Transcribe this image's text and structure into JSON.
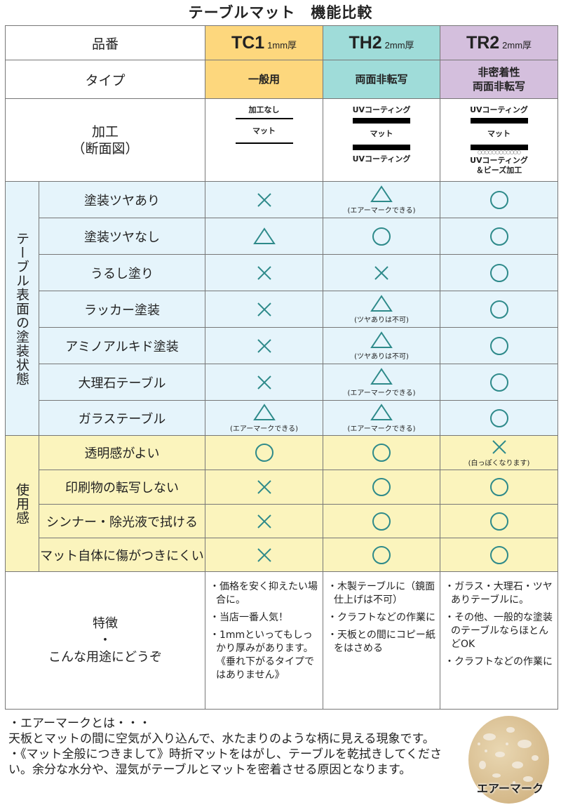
{
  "title": "テーブルマット　機能比較",
  "colors": {
    "tc1": "#fdd77d",
    "th2": "#9fdcd9",
    "tr2": "#d4bfdd",
    "surface_rows": "#e5f4fb",
    "usage_rows": "#fbf4bd",
    "symbol": "#2e8a8a"
  },
  "header": {
    "label": "品番",
    "products": [
      {
        "code": "TC1",
        "thickness": "1mm厚"
      },
      {
        "code": "TH2",
        "thickness": "2mm厚"
      },
      {
        "code": "TR2",
        "thickness": "2mm厚"
      }
    ]
  },
  "type_row": {
    "label": "タイプ",
    "values": [
      "一般用",
      "両面非転写",
      "非密着性\n両面非転写"
    ]
  },
  "process_row": {
    "label": "加工\n（断面図）",
    "tc1": {
      "top": "加工なし",
      "middle": "マット"
    },
    "th2": {
      "top": "UVコーティング",
      "middle": "マット",
      "bottom": "UVコーティング"
    },
    "tr2": {
      "top": "UVコーティング",
      "middle": "マット",
      "bottom": "UVコーティング\n＆ビーズ加工"
    }
  },
  "surface_group": {
    "label": "テーブル表面の塗装状態",
    "rows": [
      {
        "label": "塗装ツヤあり",
        "ratings": [
          {
            "symbol": "x"
          },
          {
            "symbol": "triangle",
            "note": "(エアーマークできる)"
          },
          {
            "symbol": "circle"
          }
        ]
      },
      {
        "label": "塗装ツヤなし",
        "ratings": [
          {
            "symbol": "triangle"
          },
          {
            "symbol": "circle"
          },
          {
            "symbol": "circle"
          }
        ]
      },
      {
        "label": "うるし塗り",
        "ratings": [
          {
            "symbol": "x"
          },
          {
            "symbol": "x"
          },
          {
            "symbol": "circle"
          }
        ]
      },
      {
        "label": "ラッカー塗装",
        "ratings": [
          {
            "symbol": "x"
          },
          {
            "symbol": "triangle",
            "note": "(ツヤありは不可)"
          },
          {
            "symbol": "circle"
          }
        ]
      },
      {
        "label": "アミノアルキド塗装",
        "ratings": [
          {
            "symbol": "x"
          },
          {
            "symbol": "triangle",
            "note": "(ツヤありは不可)"
          },
          {
            "symbol": "circle"
          }
        ]
      },
      {
        "label": "大理石テーブル",
        "ratings": [
          {
            "symbol": "x"
          },
          {
            "symbol": "triangle",
            "note": "(エアーマークできる)"
          },
          {
            "symbol": "circle"
          }
        ]
      },
      {
        "label": "ガラステーブル",
        "ratings": [
          {
            "symbol": "triangle",
            "note": "(エアーマークできる)"
          },
          {
            "symbol": "triangle",
            "note": "(エアーマークできる)"
          },
          {
            "symbol": "circle"
          }
        ]
      }
    ]
  },
  "usage_group": {
    "label": "使用感",
    "rows": [
      {
        "label": "透明感がよい",
        "ratings": [
          {
            "symbol": "circle"
          },
          {
            "symbol": "circle"
          },
          {
            "symbol": "x",
            "note": "(白っぽくなります)"
          }
        ]
      },
      {
        "label": "印刷物の転写しない",
        "ratings": [
          {
            "symbol": "x"
          },
          {
            "symbol": "circle"
          },
          {
            "symbol": "circle"
          }
        ]
      },
      {
        "label": "シンナー・除光液で拭ける",
        "ratings": [
          {
            "symbol": "x"
          },
          {
            "symbol": "circle"
          },
          {
            "symbol": "circle"
          }
        ]
      },
      {
        "label": "マット自体に傷がつきにくい",
        "ratings": [
          {
            "symbol": "x"
          },
          {
            "symbol": "circle"
          },
          {
            "symbol": "circle"
          }
        ]
      }
    ]
  },
  "features": {
    "label": "特徴\n・\nこんな用途にどうぞ",
    "values": [
      [
        "・価格を安く抑えたい場合に。",
        "・当店一番人気！",
        "・1mmといってもしっかり厚みがあります。《垂れ下がるタイプではありません》"
      ],
      [
        "・木製テーブルに（鏡面仕上げは不可）",
        "・クラフトなどの作業に",
        "・天板との間にコピー紙をはさめる"
      ],
      [
        "・ガラス・大理石・ツヤありテーブルに。",
        "・その他、一般的な塗装のテーブルならほとんどOK",
        "・クラフトなどの作業に"
      ]
    ]
  },
  "notes": [
    "・エアーマークとは・・・\n天板とマットの間に空気が入り込んで、水たまりのような柄に見える現象です。",
    "・《マット全般につきまして》時折マットをはがし、テーブルを乾拭きしてください。余分な水分や、湿気がテーブルとマットを密着させる原因となります。"
  ],
  "sample_image": {
    "caption": "エアーマーク"
  }
}
